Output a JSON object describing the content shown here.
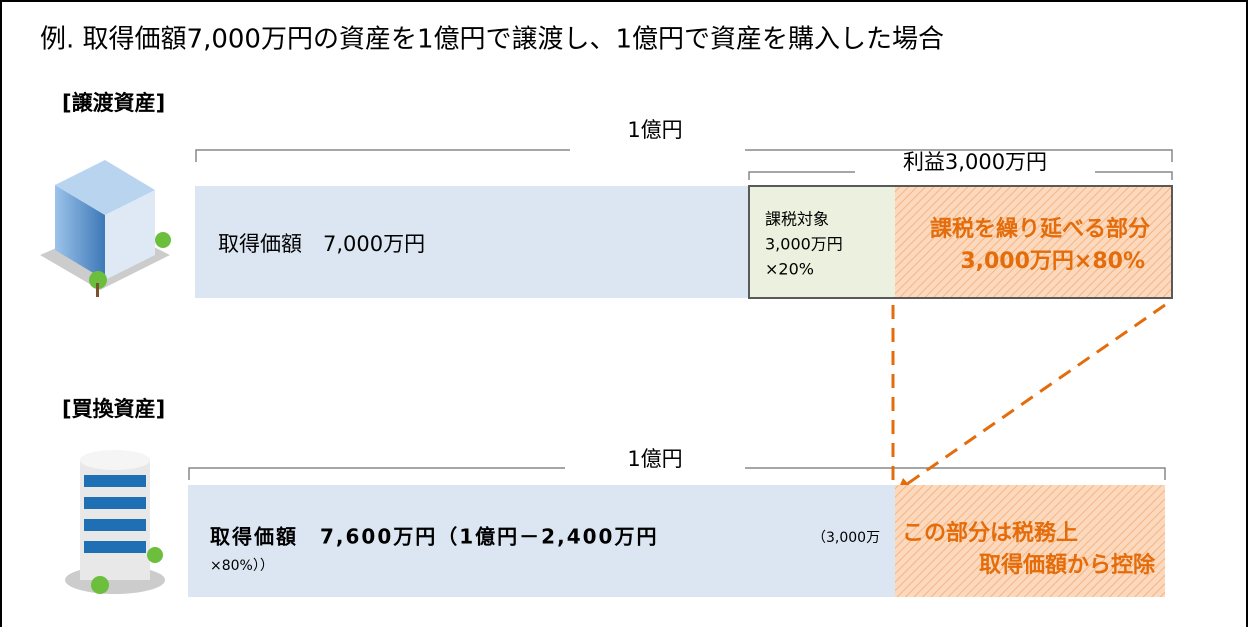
{
  "title": "例. 取得価額7,000万円の資産を1億円で譲渡し、1億円で資産を購入した場合",
  "transferred": {
    "label": "[譲渡資産]",
    "total_bracket": "1億円",
    "profit_bracket": "利益3,000万円",
    "acquisition": "取得価額　7,000万円",
    "taxable": [
      "課税対象",
      "3,000万円",
      "×20%"
    ],
    "deferred": [
      "課税を繰り延べる部分",
      "3,000万円×80%"
    ]
  },
  "replacement": {
    "label": "[買換資産]",
    "total_bracket": "1億円",
    "acquisition": [
      "取得価額　7,600万円（1億円－2,400万円",
      "（3,000万",
      "×80%））"
    ],
    "deduction": [
      "この部分は税務上",
      "取得価額から控除"
    ]
  }
}
